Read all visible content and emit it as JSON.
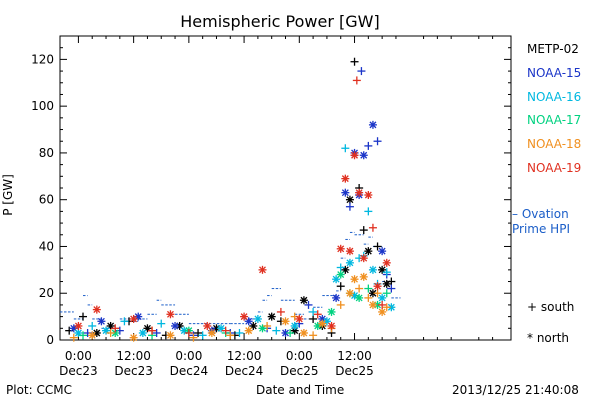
{
  "chart_data": {
    "type": "scatter",
    "title": "Hemispheric Power [GW]",
    "ylabel": "P [GW]",
    "xlabel": "Date and Time",
    "ylim": [
      0,
      130
    ],
    "yticks": [
      0,
      20,
      40,
      60,
      80,
      100,
      120
    ],
    "xlim_hours": [
      -4,
      94
    ],
    "x_ticks": [
      {
        "t": 0,
        "time": "0:00",
        "date": "Dec23"
      },
      {
        "t": 12,
        "time": "12:00",
        "date": "Dec23"
      },
      {
        "t": 24,
        "time": "0:00",
        "date": "Dec24"
      },
      {
        "t": 36,
        "time": "12:00",
        "date": "Dec24"
      },
      {
        "t": 48,
        "time": "0:00",
        "date": "Dec25"
      },
      {
        "t": 60,
        "time": "12:00",
        "date": "Dec25"
      }
    ],
    "x_unit_note": "hours after 2013-12-23 00:00",
    "grid": false,
    "legend_position": "right",
    "series": [
      {
        "name": "METP-02",
        "color": "#000000",
        "points": [
          [
            -2,
            4,
            "+"
          ],
          [
            1,
            10,
            "+"
          ],
          [
            4,
            3,
            "*"
          ],
          [
            7,
            6,
            "*"
          ],
          [
            11,
            8,
            "+"
          ],
          [
            15,
            5,
            "*"
          ],
          [
            19,
            2,
            "+"
          ],
          [
            22,
            6,
            "*"
          ],
          [
            26,
            3,
            "+"
          ],
          [
            30,
            5,
            "*"
          ],
          [
            34,
            2,
            "+"
          ],
          [
            38,
            6,
            "*"
          ],
          [
            42,
            10,
            "*"
          ],
          [
            44,
            8,
            "+"
          ],
          [
            47,
            4,
            "*"
          ],
          [
            49,
            17,
            "*"
          ],
          [
            51,
            9,
            "+"
          ],
          [
            53,
            6,
            "*"
          ],
          [
            55,
            3,
            "+"
          ],
          [
            57,
            23,
            "+"
          ],
          [
            58,
            30,
            "*"
          ],
          [
            59,
            60,
            "*"
          ],
          [
            60,
            119,
            "+"
          ],
          [
            61,
            65,
            "+"
          ],
          [
            62,
            47,
            "+"
          ],
          [
            63,
            38,
            "*"
          ],
          [
            64,
            20,
            "*"
          ],
          [
            65,
            40,
            "+"
          ],
          [
            66,
            30,
            "*"
          ],
          [
            67,
            24,
            "*"
          ],
          [
            68,
            25,
            "+"
          ]
        ]
      },
      {
        "name": "NOAA-15",
        "color": "#1b35c8",
        "points": [
          [
            -1,
            5,
            "*"
          ],
          [
            2,
            3,
            "+"
          ],
          [
            5,
            8,
            "*"
          ],
          [
            9,
            4,
            "+"
          ],
          [
            13,
            10,
            "*"
          ],
          [
            17,
            3,
            "+"
          ],
          [
            21,
            6,
            "*"
          ],
          [
            25,
            2,
            "+"
          ],
          [
            29,
            4,
            "*"
          ],
          [
            33,
            3,
            "+"
          ],
          [
            37,
            8,
            "*"
          ],
          [
            41,
            5,
            "+"
          ],
          [
            45,
            3,
            "*"
          ],
          [
            48,
            7,
            "+"
          ],
          [
            50,
            15,
            "+"
          ],
          [
            53,
            9,
            "*"
          ],
          [
            56,
            18,
            "*"
          ],
          [
            58,
            63,
            "*"
          ],
          [
            59,
            57,
            "+"
          ],
          [
            60,
            80,
            "*"
          ],
          [
            61,
            62,
            "*"
          ],
          [
            61.5,
            115,
            "+"
          ],
          [
            62,
            79,
            "*"
          ],
          [
            63,
            83,
            "+"
          ],
          [
            64,
            92,
            "*"
          ],
          [
            65,
            85,
            "+"
          ],
          [
            66,
            38,
            "*"
          ],
          [
            67,
            28,
            "+"
          ],
          [
            68,
            22,
            "+"
          ]
        ]
      },
      {
        "name": "NOAA-16",
        "color": "#00b8e0",
        "points": [
          [
            0,
            3,
            "*"
          ],
          [
            3,
            6,
            "+"
          ],
          [
            6,
            4,
            "*"
          ],
          [
            10,
            8,
            "+"
          ],
          [
            14,
            3,
            "*"
          ],
          [
            18,
            7,
            "+"
          ],
          [
            23,
            4,
            "*"
          ],
          [
            27,
            2,
            "+"
          ],
          [
            31,
            5,
            "*"
          ],
          [
            35,
            3,
            "+"
          ],
          [
            39,
            9,
            "*"
          ],
          [
            43,
            4,
            "+"
          ],
          [
            47,
            6,
            "*"
          ],
          [
            51,
            12,
            "+"
          ],
          [
            54,
            8,
            "*"
          ],
          [
            56,
            26,
            "*"
          ],
          [
            57,
            31,
            "+"
          ],
          [
            58,
            82,
            "+"
          ],
          [
            59,
            33,
            "*"
          ],
          [
            60,
            19,
            "*"
          ],
          [
            61,
            35,
            "+"
          ],
          [
            62,
            36,
            "+"
          ],
          [
            63,
            55,
            "+"
          ],
          [
            64,
            30,
            "*"
          ],
          [
            65,
            24,
            "+"
          ],
          [
            66,
            18,
            "*"
          ],
          [
            67,
            29,
            "+"
          ],
          [
            68,
            14,
            "*"
          ]
        ]
      },
      {
        "name": "NOAA-17",
        "color": "#00d280",
        "points": [
          [
            1,
            2,
            "+"
          ],
          [
            8,
            3,
            "*"
          ],
          [
            16,
            2,
            "+"
          ],
          [
            24,
            4,
            "*"
          ],
          [
            32,
            3,
            "+"
          ],
          [
            40,
            5,
            "*"
          ],
          [
            46,
            3,
            "+"
          ],
          [
            52,
            6,
            "*"
          ],
          [
            55,
            12,
            "*"
          ],
          [
            57,
            28,
            "*"
          ],
          [
            59,
            20,
            "+"
          ],
          [
            61,
            18,
            "*"
          ],
          [
            63,
            22,
            "+"
          ],
          [
            65,
            15,
            "*"
          ],
          [
            67,
            20,
            "+"
          ]
        ]
      },
      {
        "name": "NOAA-18",
        "color": "#f09020",
        "points": [
          [
            -1,
            1,
            "+"
          ],
          [
            3,
            2,
            "*"
          ],
          [
            7,
            3,
            "+"
          ],
          [
            12,
            1,
            "*"
          ],
          [
            16,
            4,
            "+"
          ],
          [
            20,
            2,
            "*"
          ],
          [
            25,
            1,
            "+"
          ],
          [
            29,
            3,
            "*"
          ],
          [
            33,
            2,
            "+"
          ],
          [
            37,
            4,
            "*"
          ],
          [
            41,
            6,
            "+"
          ],
          [
            45,
            8,
            "*"
          ],
          [
            47,
            10,
            "+"
          ],
          [
            49,
            3,
            "*"
          ],
          [
            51,
            2,
            "+"
          ],
          [
            53,
            7,
            "*"
          ],
          [
            55,
            5,
            "+"
          ],
          [
            57,
            15,
            "+"
          ],
          [
            59,
            20,
            "*"
          ],
          [
            60,
            26,
            "*"
          ],
          [
            61,
            22,
            "+"
          ],
          [
            62,
            27,
            "*"
          ],
          [
            63,
            18,
            "+"
          ],
          [
            64,
            15,
            "*"
          ],
          [
            65,
            20,
            "+"
          ],
          [
            66,
            12,
            "*"
          ],
          [
            67,
            14,
            "+"
          ]
        ]
      },
      {
        "name": "NOAA-19",
        "color": "#e03020",
        "points": [
          [
            0,
            6,
            "*"
          ],
          [
            4,
            13,
            "*"
          ],
          [
            8,
            5,
            "+"
          ],
          [
            12,
            9,
            "*"
          ],
          [
            16,
            4,
            "+"
          ],
          [
            20,
            11,
            "*"
          ],
          [
            24,
            3,
            "+"
          ],
          [
            28,
            6,
            "*"
          ],
          [
            32,
            4,
            "+"
          ],
          [
            36,
            10,
            "*"
          ],
          [
            40,
            30,
            "*"
          ],
          [
            44,
            12,
            "+"
          ],
          [
            48,
            9,
            "*"
          ],
          [
            52,
            11,
            "+"
          ],
          [
            55,
            6,
            "*"
          ],
          [
            57,
            39,
            "*"
          ],
          [
            58,
            69,
            "*"
          ],
          [
            59,
            38,
            "*"
          ],
          [
            60,
            79,
            "*"
          ],
          [
            60.5,
            111,
            "+"
          ],
          [
            61,
            63,
            "*"
          ],
          [
            62,
            35,
            "*"
          ],
          [
            63,
            62,
            "*"
          ],
          [
            64,
            48,
            "+"
          ],
          [
            65,
            23,
            "*"
          ],
          [
            66,
            15,
            "+"
          ],
          [
            67,
            33,
            "*"
          ]
        ]
      }
    ],
    "ovation": {
      "name": "Ovation Prime HPI",
      "color": "#1b5ec8",
      "points": [
        [
          -4,
          12
        ],
        [
          -1,
          9
        ],
        [
          1,
          19
        ],
        [
          2,
          15
        ],
        [
          3,
          9
        ],
        [
          5,
          5
        ],
        [
          9,
          9
        ],
        [
          11,
          8
        ],
        [
          13,
          9
        ],
        [
          15,
          11
        ],
        [
          17,
          17
        ],
        [
          18,
          15
        ],
        [
          21,
          11
        ],
        [
          24,
          7
        ],
        [
          33,
          7
        ],
        [
          36,
          9
        ],
        [
          39,
          12
        ],
        [
          40,
          17
        ],
        [
          41,
          19
        ],
        [
          42,
          22
        ],
        [
          44,
          17
        ],
        [
          47,
          11
        ],
        [
          49,
          9
        ],
        [
          50,
          12
        ],
        [
          51,
          14
        ],
        [
          53,
          19
        ],
        [
          56,
          21
        ],
        [
          57,
          35
        ],
        [
          58,
          43
        ],
        [
          59,
          46
        ],
        [
          60,
          45
        ],
        [
          62,
          41
        ],
        [
          63,
          44
        ],
        [
          64,
          40
        ],
        [
          65,
          40
        ],
        [
          66,
          25
        ],
        [
          67,
          22
        ],
        [
          68,
          18
        ],
        [
          70,
          10
        ]
      ]
    },
    "markers_legend": {
      "south": "south",
      "north": "north"
    }
  },
  "footer": {
    "left": "Plot: CCMC",
    "center": "Date and Time",
    "right": "2013/12/25 21:40:08"
  }
}
